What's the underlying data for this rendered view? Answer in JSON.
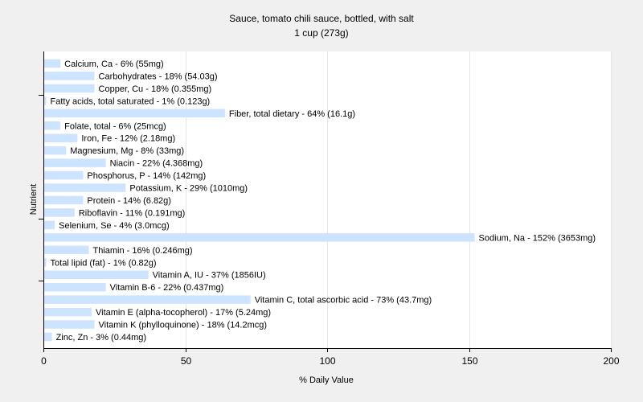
{
  "chart_data": {
    "type": "bar",
    "orientation": "horizontal",
    "title": "Sauce, tomato chili sauce, bottled, with salt",
    "subtitle": "1 cup (273g)",
    "xlabel": "% Daily Value",
    "ylabel": "Nutrient",
    "xlim": [
      0,
      200
    ],
    "xticks": [
      0,
      50,
      100,
      150,
      200
    ],
    "grid": true,
    "bar_color": "#cce4ff",
    "grid_color": "#e6e6e6",
    "background": "#ffffff",
    "categories": [
      "Calcium, Ca",
      "Carbohydrates",
      "Copper, Cu",
      "Fatty acids, total saturated",
      "Fiber, total dietary",
      "Folate, total",
      "Iron, Fe",
      "Magnesium, Mg",
      "Niacin",
      "Phosphorus, P",
      "Potassium, K",
      "Protein",
      "Riboflavin",
      "Selenium, Se",
      "Sodium, Na",
      "Thiamin",
      "Total lipid (fat)",
      "Vitamin A, IU",
      "Vitamin B-6",
      "Vitamin C, total ascorbic acid",
      "Vitamin E (alpha-tocopherol)",
      "Vitamin K (phylloquinone)",
      "Zinc, Zn"
    ],
    "values": [
      6,
      18,
      18,
      1,
      64,
      6,
      12,
      8,
      22,
      14,
      29,
      14,
      11,
      4,
      152,
      16,
      1,
      37,
      22,
      73,
      17,
      18,
      3
    ],
    "labels": [
      "Calcium, Ca - 6% (55mg)",
      "Carbohydrates - 18% (54.03g)",
      "Copper, Cu - 18% (0.355mg)",
      "Fatty acids, total saturated - 1% (0.123g)",
      "Fiber, total dietary - 64% (16.1g)",
      "Folate, total - 6% (25mcg)",
      "Iron, Fe - 12% (2.18mg)",
      "Magnesium, Mg - 8% (33mg)",
      "Niacin - 22% (4.368mg)",
      "Phosphorus, P - 14% (142mg)",
      "Potassium, K - 29% (1010mg)",
      "Protein - 14% (6.82g)",
      "Riboflavin - 11% (0.191mg)",
      "Selenium, Se - 4% (3.0mcg)",
      "Sodium, Na - 152% (3653mg)",
      "Thiamin - 16% (0.246mg)",
      "Total lipid (fat) - 1% (0.82g)",
      "Vitamin A, IU - 37% (1856IU)",
      "Vitamin B-6 - 22% (0.437mg)",
      "Vitamin C, total ascorbic acid - 73% (43.7mg)",
      "Vitamin E (alpha-tocopherol) - 17% (5.24mg)",
      "Vitamin K (phylloquinone) - 18% (14.2mcg)",
      "Zinc, Zn - 3% (0.44mg)"
    ]
  }
}
